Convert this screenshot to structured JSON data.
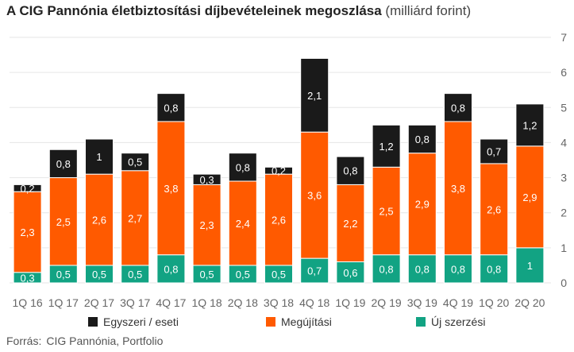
{
  "title": "A CIG Pannónia életbiztosítási díjbevételeinek megoszlása",
  "unit": "(milliárd forint)",
  "colors": {
    "new": "#12a383",
    "renewal": "#ff5a00",
    "single": "#1a1a1a"
  },
  "legend": [
    {
      "key": "single",
      "label": "Egyszeri / eseti"
    },
    {
      "key": "renewal",
      "label": "Megújítási"
    },
    {
      "key": "new",
      "label": "Új szerzési"
    }
  ],
  "source_label": "Forrás:",
  "source_text": "CIG Pannónia, Portfolio",
  "chart_data": {
    "type": "bar",
    "stacked": true,
    "categories": [
      "1Q 16",
      "1Q 17",
      "2Q 17",
      "3Q 17",
      "4Q 17",
      "1Q 18",
      "2Q 18",
      "3Q 18",
      "4Q 18",
      "1Q 19",
      "2Q 19",
      "3Q 19",
      "4Q 19",
      "1Q 20",
      "2Q 20"
    ],
    "series": [
      {
        "name": "Új szerzési",
        "key": "new",
        "values": [
          0.3,
          0.5,
          0.5,
          0.5,
          0.8,
          0.5,
          0.5,
          0.5,
          0.7,
          0.6,
          0.8,
          0.8,
          0.8,
          0.8,
          1.0
        ]
      },
      {
        "name": "Megújítási",
        "key": "renewal",
        "values": [
          2.3,
          2.5,
          2.6,
          2.7,
          3.8,
          2.3,
          2.4,
          2.6,
          3.6,
          2.2,
          2.5,
          2.9,
          3.8,
          2.6,
          2.9
        ]
      },
      {
        "name": "Egyszeri / eseti",
        "key": "single",
        "values": [
          0.2,
          0.8,
          1.0,
          0.5,
          0.8,
          0.3,
          0.8,
          0.2,
          2.1,
          0.8,
          1.2,
          0.8,
          0.8,
          0.7,
          1.2
        ]
      }
    ],
    "ylim": [
      0,
      7
    ],
    "yticks": [
      0,
      1,
      2,
      3,
      4,
      5,
      6,
      7
    ],
    "y_axis_side": "right",
    "grid": true,
    "legend_position": "bottom"
  }
}
